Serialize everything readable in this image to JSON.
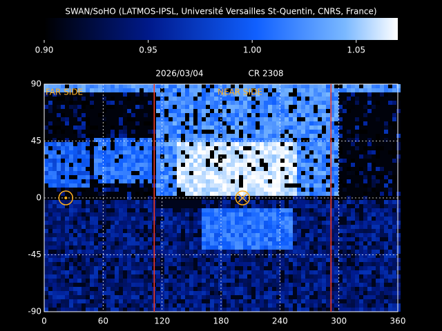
{
  "chart_data": {
    "type": "heatmap",
    "title": "SWAN/SoHO (LATMOS-IPSL, Université Versailles St-Quentin, CNRS, France)",
    "date": "2026/03/04",
    "rotation": "CR 2308",
    "far_side": "FAR SIDE",
    "near_side": "NEAR SIDE",
    "clim": [
      0.9,
      1.07
    ],
    "cticks": [
      {
        "value": 0.9,
        "label": "0.90"
      },
      {
        "value": 0.95,
        "label": "0.95"
      },
      {
        "value": 1.0,
        "label": "1.00"
      },
      {
        "value": 1.05,
        "label": "1.05"
      }
    ],
    "xlim": [
      0,
      360
    ],
    "xticks": [
      0,
      60,
      120,
      180,
      240,
      300,
      360
    ],
    "ylim": [
      -90,
      90
    ],
    "yticks": [
      90,
      45,
      0,
      -45,
      -90
    ],
    "grid": true,
    "vlines": [
      112,
      292
    ],
    "vline_color": "#ff3b1f",
    "sun_far": [
      22,
      0
    ],
    "sun_near": [
      202,
      0
    ],
    "marker_color": "#ffb020"
  }
}
